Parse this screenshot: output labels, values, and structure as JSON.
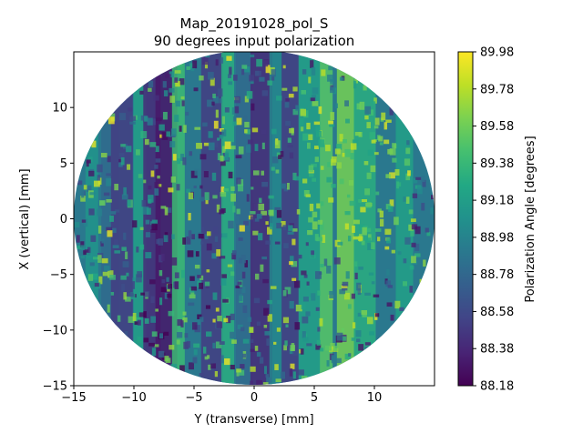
{
  "chart_data": {
    "type": "heatmap",
    "title_line1": "Map_20191028_pol_S",
    "title_line2": "90 degrees input polarization",
    "xlabel": "Y (transverse) [mm]",
    "ylabel": "X (vertical) [mm]",
    "colorbar_label": "Polarization Angle [degrees]",
    "xlim": [
      -15,
      15
    ],
    "ylim": [
      -15,
      15
    ],
    "xticks": [
      -15,
      -10,
      -5,
      0,
      5,
      10
    ],
    "xtick_labels": [
      "−15",
      "−10",
      "−5",
      "0",
      "5",
      "10"
    ],
    "yticks": [
      -15,
      -10,
      -5,
      0,
      5,
      10
    ],
    "ytick_labels": [
      "−15",
      "−10",
      "−5",
      "0",
      "5",
      "10"
    ],
    "colorbar_range": [
      88.18,
      89.98
    ],
    "colorbar_ticks": [
      88.18,
      88.38,
      88.58,
      88.78,
      88.98,
      89.18,
      89.38,
      89.58,
      89.78,
      89.98
    ],
    "colorbar_tick_labels": [
      "88.18",
      "88.38",
      "88.58",
      "88.78",
      "88.98",
      "89.18",
      "89.38",
      "89.58",
      "89.78",
      "89.98"
    ],
    "colormap": "viridis",
    "map_shape": "circular aperture, radius ≈ 15 mm, centered at (0, 0)",
    "vertical_streak_profile": {
      "y_positions_mm": [
        -13.5,
        -12,
        -11,
        -9.5,
        -8.5,
        -7.3,
        -6.3,
        -4.8,
        -3.5,
        -2.2,
        -0.8,
        0.6,
        1.8,
        3.0,
        4.6,
        6.0,
        7.6,
        9.2,
        10.8,
        12.5
      ],
      "typical_angle_deg": [
        89.1,
        88.8,
        88.5,
        89.2,
        88.4,
        88.3,
        89.4,
        88.9,
        88.5,
        89.3,
        88.8,
        88.4,
        89.0,
        88.5,
        89.2,
        89.5,
        89.6,
        89.3,
        88.9,
        89.2
      ]
    }
  }
}
